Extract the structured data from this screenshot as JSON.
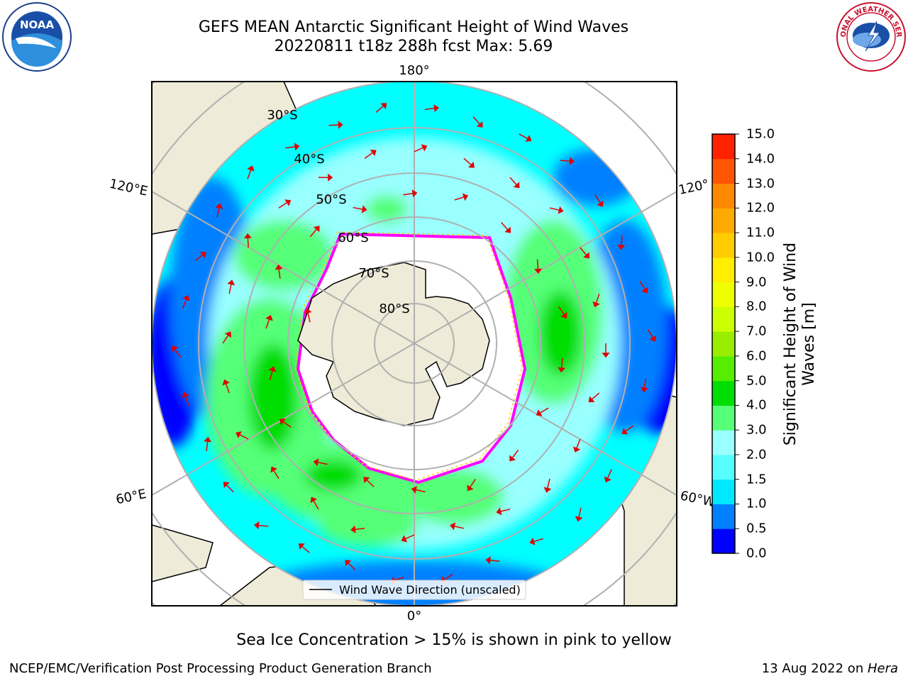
{
  "header": {
    "title_line1": "GEFS MEAN Antarctic Significant Height of Wind Waves",
    "title_line2": "20220811 t18z 288h fcst   Max: 5.69"
  },
  "map": {
    "projection": "south-polar-stereographic",
    "meridian_labels": {
      "top": "180°",
      "left": "120°E",
      "right": "120°",
      "bottom_left": "60°E",
      "bottom_right": "60°W",
      "bottom": "0°"
    },
    "parallel_labels": [
      "30°S",
      "40°S",
      "50°S",
      "60°S",
      "70°S",
      "80°S"
    ],
    "legend_label": "Wind Wave Direction (unscaled)",
    "ice_note": "Sea Ice Concentration > 15% is shown in pink to yellow",
    "colors": {
      "land": "#eeebd8",
      "ocean_blue": "#0080ff",
      "ocean_cyan": "#00ffff",
      "light_cyan": "#99ffff",
      "green_light": "#55ff66",
      "green": "#00dd00",
      "arrow": "#e00000",
      "ice_edge": "#ff00ff"
    }
  },
  "colorbar": {
    "label_line1": "Significant Height of Wind",
    "label_line2": "Waves [m]",
    "ticks": [
      "15.0",
      "14.0",
      "13.0",
      "12.0",
      "11.0",
      "10.0",
      "9.0",
      "8.0",
      "7.0",
      "6.0",
      "5.0",
      "4.0",
      "3.0",
      "2.0",
      "1.5",
      "1.0",
      "0.5",
      "0.0"
    ],
    "colors_bottom_to_top": [
      "#0000ff",
      "#0080ff",
      "#00e8ff",
      "#55ffff",
      "#99ffff",
      "#55ff77",
      "#00dd00",
      "#55ee00",
      "#99ee00",
      "#ccff00",
      "#eeff00",
      "#ffee00",
      "#ffcc00",
      "#ffaa00",
      "#ff8800",
      "#ff5500",
      "#ff2200"
    ]
  },
  "logos": {
    "left": "NOAA",
    "right": "NATIONAL WEATHER SERVICE"
  },
  "footer": {
    "left": "NCEP/EMC/Verification Post Processing Product Generation Branch",
    "right_date": "13 Aug 2022 on ",
    "right_machine": "Hera"
  }
}
